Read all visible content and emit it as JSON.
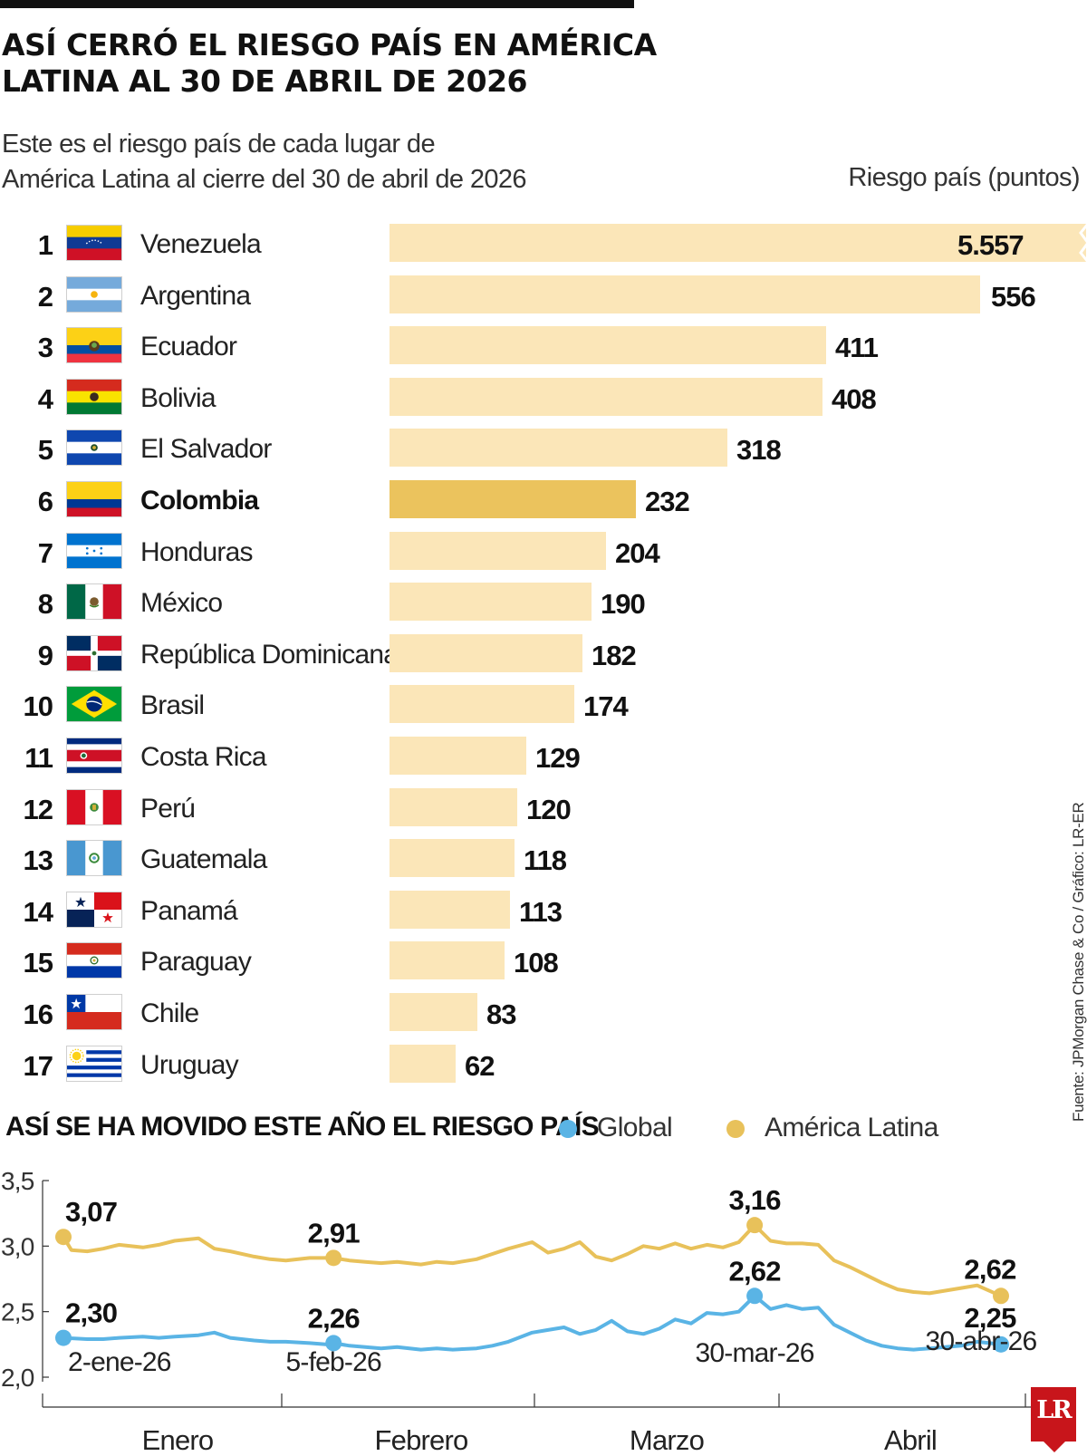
{
  "title_lines": [
    "ASÍ CERRÓ EL RIESGO PAÍS EN AMÉRICA",
    "LATINA AL 30 DE ABRIL DE 2026"
  ],
  "subtitle_lines": [
    "Este es el riesgo país de cada lugar de",
    "América Latina al cierre del 30 de abril de 2026"
  ],
  "unit_label": "Riesgo país (puntos)",
  "source": "Fuente: JPMorgan Chase & Co / Gráfico: LR-ER",
  "logo": "LR",
  "colors": {
    "bar": "#fbe6b8",
    "bar_highlight": "#ebc35d",
    "global": "#5ab4e5",
    "latam": "#e8c15a"
  },
  "chart_data": [
    {
      "type": "bar",
      "orientation": "horizontal",
      "title": "ASÍ CERRÓ EL RIESGO PAÍS EN AMÉRICA LATINA AL 30 DE ABRIL DE 2026",
      "subtitle": "Este es el riesgo país de cada lugar de América Latina al cierre del 30 de abril de 2026",
      "value_label": "Riesgo país (puntos)",
      "highlight": "Colombia",
      "truncated_category": "Venezuela",
      "bars": [
        {
          "rank": "1",
          "country": "Venezuela",
          "flag": "venezuela",
          "value": 5557,
          "label": "5.557"
        },
        {
          "rank": "2",
          "country": "Argentina",
          "flag": "argentina",
          "value": 556,
          "label": "556"
        },
        {
          "rank": "3",
          "country": "Ecuador",
          "flag": "ecuador",
          "value": 411,
          "label": "411"
        },
        {
          "rank": "4",
          "country": "Bolivia",
          "flag": "bolivia",
          "value": 408,
          "label": "408"
        },
        {
          "rank": "5",
          "country": "El Salvador",
          "flag": "el-salvador",
          "value": 318,
          "label": "318"
        },
        {
          "rank": "6",
          "country": "Colombia",
          "flag": "colombia",
          "value": 232,
          "label": "232"
        },
        {
          "rank": "7",
          "country": "Honduras",
          "flag": "honduras",
          "value": 204,
          "label": "204"
        },
        {
          "rank": "8",
          "country": "México",
          "flag": "mexico",
          "value": 190,
          "label": "190"
        },
        {
          "rank": "9",
          "country": "República Dominicana",
          "flag": "dominican-republic",
          "value": 182,
          "label": "182"
        },
        {
          "rank": "10",
          "country": "Brasil",
          "flag": "brazil",
          "value": 174,
          "label": "174"
        },
        {
          "rank": "11",
          "country": "Costa Rica",
          "flag": "costa-rica",
          "value": 129,
          "label": "129"
        },
        {
          "rank": "12",
          "country": "Perú",
          "flag": "peru",
          "value": 120,
          "label": "120"
        },
        {
          "rank": "13",
          "country": "Guatemala",
          "flag": "guatemala",
          "value": 118,
          "label": "118"
        },
        {
          "rank": "14",
          "country": "Panamá",
          "flag": "panama",
          "value": 113,
          "label": "113"
        },
        {
          "rank": "15",
          "country": "Paraguay",
          "flag": "paraguay",
          "value": 108,
          "label": "108"
        },
        {
          "rank": "16",
          "country": "Chile",
          "flag": "chile",
          "value": 83,
          "label": "83"
        },
        {
          "rank": "17",
          "country": "Uruguay",
          "flag": "uruguay",
          "value": 62,
          "label": "62"
        }
      ]
    },
    {
      "type": "line",
      "title": "ASÍ SE HA MOVIDO ESTE AÑO EL RIESGO PAÍS",
      "ylim": [
        2.0,
        3.5
      ],
      "yticks": [
        2.0,
        2.5,
        3.0,
        3.5
      ],
      "ytick_labels": [
        "2,0",
        "2,5",
        "3,0",
        "3,5"
      ],
      "xlim": [
        "2026-01-02",
        "2026-04-30"
      ],
      "months": [
        "Enero",
        "Febrero",
        "Marzo",
        "Abril"
      ],
      "series": [
        {
          "name": "Global",
          "color": "#5ab4e5",
          "points": [
            [
              "2026-01-02",
              2.3
            ],
            [
              "2026-01-05",
              2.29
            ],
            [
              "2026-01-07",
              2.29
            ],
            [
              "2026-01-09",
              2.3
            ],
            [
              "2026-01-12",
              2.31
            ],
            [
              "2026-01-14",
              2.3
            ],
            [
              "2026-01-16",
              2.31
            ],
            [
              "2026-01-19",
              2.32
            ],
            [
              "2026-01-21",
              2.34
            ],
            [
              "2026-01-23",
              2.3
            ],
            [
              "2026-01-26",
              2.28
            ],
            [
              "2026-01-28",
              2.27
            ],
            [
              "2026-01-30",
              2.27
            ],
            [
              "2026-02-02",
              2.26
            ],
            [
              "2026-02-04",
              2.25
            ],
            [
              "2026-02-05",
              2.26
            ],
            [
              "2026-02-07",
              2.24
            ],
            [
              "2026-02-09",
              2.23
            ],
            [
              "2026-02-11",
              2.22
            ],
            [
              "2026-02-13",
              2.23
            ],
            [
              "2026-02-16",
              2.21
            ],
            [
              "2026-02-18",
              2.22
            ],
            [
              "2026-02-20",
              2.21
            ],
            [
              "2026-02-23",
              2.22
            ],
            [
              "2026-02-25",
              2.24
            ],
            [
              "2026-02-27",
              2.27
            ],
            [
              "2026-03-02",
              2.34
            ],
            [
              "2026-03-04",
              2.36
            ],
            [
              "2026-03-06",
              2.38
            ],
            [
              "2026-03-08",
              2.33
            ],
            [
              "2026-03-10",
              2.36
            ],
            [
              "2026-03-12",
              2.43
            ],
            [
              "2026-03-14",
              2.35
            ],
            [
              "2026-03-16",
              2.33
            ],
            [
              "2026-03-18",
              2.37
            ],
            [
              "2026-03-20",
              2.44
            ],
            [
              "2026-03-22",
              2.41
            ],
            [
              "2026-03-24",
              2.49
            ],
            [
              "2026-03-26",
              2.48
            ],
            [
              "2026-03-28",
              2.5
            ],
            [
              "2026-03-30",
              2.62
            ],
            [
              "2026-04-01",
              2.52
            ],
            [
              "2026-04-03",
              2.55
            ],
            [
              "2026-04-05",
              2.52
            ],
            [
              "2026-04-07",
              2.53
            ],
            [
              "2026-04-09",
              2.4
            ],
            [
              "2026-04-11",
              2.34
            ],
            [
              "2026-04-13",
              2.28
            ],
            [
              "2026-04-15",
              2.24
            ],
            [
              "2026-04-17",
              2.22
            ],
            [
              "2026-04-19",
              2.21
            ],
            [
              "2026-04-21",
              2.22
            ],
            [
              "2026-04-23",
              2.23
            ],
            [
              "2026-04-25",
              2.24
            ],
            [
              "2026-04-27",
              2.27
            ],
            [
              "2026-04-30",
              2.25
            ]
          ],
          "annotations": [
            {
              "date": "2026-01-02",
              "value": 2.3,
              "label": "2,30"
            },
            {
              "date": "2026-02-05",
              "value": 2.26,
              "label": "2,26"
            },
            {
              "date": "2026-03-30",
              "value": 2.62,
              "label": "2,62"
            },
            {
              "date": "2026-04-30",
              "value": 2.25,
              "label": "2,25"
            }
          ]
        },
        {
          "name": "América Latina",
          "color": "#e8c15a",
          "points": [
            [
              "2026-01-02",
              3.07
            ],
            [
              "2026-01-03",
              2.97
            ],
            [
              "2026-01-05",
              2.96
            ],
            [
              "2026-01-07",
              2.98
            ],
            [
              "2026-01-09",
              3.01
            ],
            [
              "2026-01-12",
              2.99
            ],
            [
              "2026-01-14",
              3.01
            ],
            [
              "2026-01-16",
              3.04
            ],
            [
              "2026-01-19",
              3.06
            ],
            [
              "2026-01-21",
              2.98
            ],
            [
              "2026-01-23",
              2.96
            ],
            [
              "2026-01-26",
              2.92
            ],
            [
              "2026-01-28",
              2.9
            ],
            [
              "2026-01-30",
              2.89
            ],
            [
              "2026-02-02",
              2.91
            ],
            [
              "2026-02-05",
              2.91
            ],
            [
              "2026-02-07",
              2.89
            ],
            [
              "2026-02-09",
              2.88
            ],
            [
              "2026-02-11",
              2.87
            ],
            [
              "2026-02-13",
              2.88
            ],
            [
              "2026-02-16",
              2.86
            ],
            [
              "2026-02-18",
              2.88
            ],
            [
              "2026-02-20",
              2.87
            ],
            [
              "2026-02-23",
              2.9
            ],
            [
              "2026-02-25",
              2.94
            ],
            [
              "2026-02-27",
              2.98
            ],
            [
              "2026-03-02",
              3.03
            ],
            [
              "2026-03-04",
              2.95
            ],
            [
              "2026-03-06",
              2.98
            ],
            [
              "2026-03-08",
              3.03
            ],
            [
              "2026-03-10",
              2.92
            ],
            [
              "2026-03-12",
              2.89
            ],
            [
              "2026-03-14",
              2.94
            ],
            [
              "2026-03-16",
              3.0
            ],
            [
              "2026-03-18",
              2.98
            ],
            [
              "2026-03-20",
              3.02
            ],
            [
              "2026-03-22",
              2.98
            ],
            [
              "2026-03-24",
              3.01
            ],
            [
              "2026-03-26",
              2.99
            ],
            [
              "2026-03-28",
              3.03
            ],
            [
              "2026-03-30",
              3.16
            ],
            [
              "2026-04-01",
              3.04
            ],
            [
              "2026-04-03",
              3.02
            ],
            [
              "2026-04-05",
              3.02
            ],
            [
              "2026-04-07",
              3.01
            ],
            [
              "2026-04-09",
              2.89
            ],
            [
              "2026-04-11",
              2.84
            ],
            [
              "2026-04-13",
              2.78
            ],
            [
              "2026-04-15",
              2.72
            ],
            [
              "2026-04-17",
              2.67
            ],
            [
              "2026-04-19",
              2.65
            ],
            [
              "2026-04-21",
              2.64
            ],
            [
              "2026-04-23",
              2.66
            ],
            [
              "2026-04-25",
              2.68
            ],
            [
              "2026-04-27",
              2.7
            ],
            [
              "2026-04-30",
              2.62
            ]
          ],
          "annotations": [
            {
              "date": "2026-01-02",
              "value": 3.07,
              "label": "3,07"
            },
            {
              "date": "2026-02-05",
              "value": 2.91,
              "label": "2,91"
            },
            {
              "date": "2026-03-30",
              "value": 3.16,
              "label": "3,16"
            },
            {
              "date": "2026-04-30",
              "value": 2.62,
              "label": "2,62"
            }
          ]
        }
      ],
      "date_labels": [
        {
          "date": "2026-01-02",
          "label": "2-ene-26"
        },
        {
          "date": "2026-02-05",
          "label": "5-feb-26"
        },
        {
          "date": "2026-03-30",
          "label": "30-mar-26"
        },
        {
          "date": "2026-04-30",
          "label": "30-abr-26"
        }
      ],
      "legend_position": "top"
    }
  ]
}
